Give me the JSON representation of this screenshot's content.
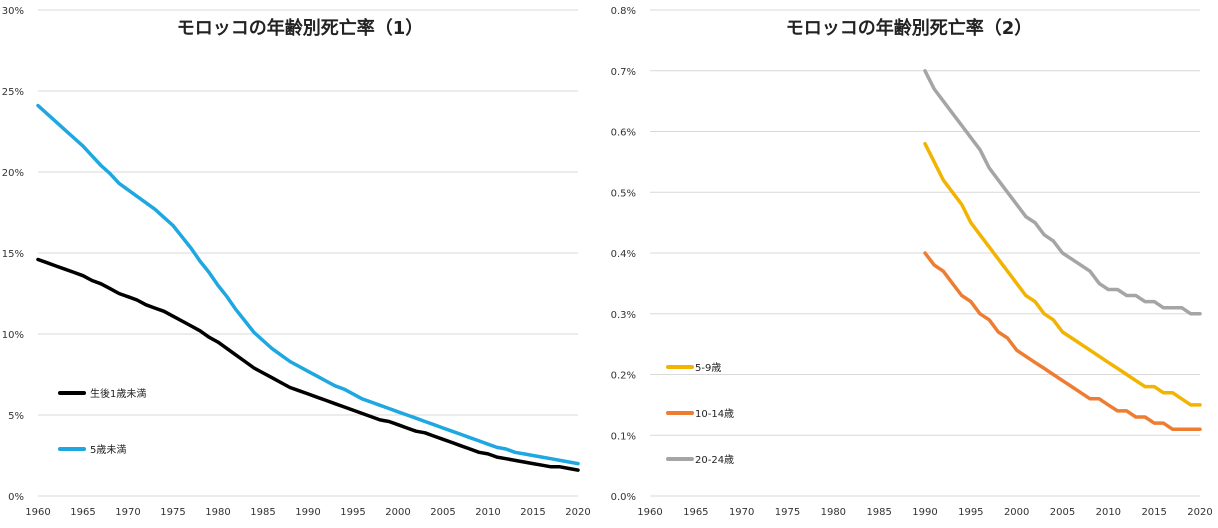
{
  "chart_data": [
    {
      "type": "line",
      "title": "モロッコの年齢別死亡率（1）",
      "xlabel": "",
      "ylabel": "",
      "xlim": [
        1960,
        2020
      ],
      "ylim": [
        0,
        30
      ],
      "x_ticks": [
        1960,
        1965,
        1970,
        1975,
        1980,
        1985,
        1990,
        1995,
        2000,
        2005,
        2010,
        2015,
        2020
      ],
      "x_tick_labels": [
        "1960",
        "1965",
        "1970",
        "1975",
        "1980",
        "1985",
        "1990",
        "1995",
        "2000",
        "2005",
        "2010",
        "2015",
        "2020"
      ],
      "y_ticks": [
        0,
        5,
        10,
        15,
        20,
        25,
        30
      ],
      "y_tick_labels": [
        "0%",
        "5%",
        "10%",
        "15%",
        "20%",
        "25%",
        "30%"
      ],
      "grid": true,
      "legend_position": "bottom-left",
      "series": [
        {
          "name": "生後1歳未満",
          "color": "#000000",
          "x": [
            1960,
            1961,
            1962,
            1963,
            1964,
            1965,
            1966,
            1967,
            1968,
            1969,
            1970,
            1971,
            1972,
            1973,
            1974,
            1975,
            1976,
            1977,
            1978,
            1979,
            1980,
            1981,
            1982,
            1983,
            1984,
            1985,
            1986,
            1987,
            1988,
            1989,
            1990,
            1991,
            1992,
            1993,
            1994,
            1995,
            1996,
            1997,
            1998,
            1999,
            2000,
            2001,
            2002,
            2003,
            2004,
            2005,
            2006,
            2007,
            2008,
            2009,
            2010,
            2011,
            2012,
            2013,
            2014,
            2015,
            2016,
            2017,
            2018,
            2019,
            2020
          ],
          "values": [
            14.6,
            14.4,
            14.2,
            14.0,
            13.8,
            13.6,
            13.3,
            13.1,
            12.8,
            12.5,
            12.3,
            12.1,
            11.8,
            11.6,
            11.4,
            11.1,
            10.8,
            10.5,
            10.2,
            9.8,
            9.5,
            9.1,
            8.7,
            8.3,
            7.9,
            7.6,
            7.3,
            7.0,
            6.7,
            6.5,
            6.3,
            6.1,
            5.9,
            5.7,
            5.5,
            5.3,
            5.1,
            4.9,
            4.7,
            4.6,
            4.4,
            4.2,
            4.0,
            3.9,
            3.7,
            3.5,
            3.3,
            3.1,
            2.9,
            2.7,
            2.6,
            2.4,
            2.3,
            2.2,
            2.1,
            2.0,
            1.9,
            1.8,
            1.8,
            1.7,
            1.6
          ]
        },
        {
          "name": "5歳未満",
          "color": "#1ea7e0",
          "x": [
            1960,
            1961,
            1962,
            1963,
            1964,
            1965,
            1966,
            1967,
            1968,
            1969,
            1970,
            1971,
            1972,
            1973,
            1974,
            1975,
            1976,
            1977,
            1978,
            1979,
            1980,
            1981,
            1982,
            1983,
            1984,
            1985,
            1986,
            1987,
            1988,
            1989,
            1990,
            1991,
            1992,
            1993,
            1994,
            1995,
            1996,
            1997,
            1998,
            1999,
            2000,
            2001,
            2002,
            2003,
            2004,
            2005,
            2006,
            2007,
            2008,
            2009,
            2010,
            2011,
            2012,
            2013,
            2014,
            2015,
            2016,
            2017,
            2018,
            2019,
            2020
          ],
          "values": [
            24.1,
            23.6,
            23.1,
            22.6,
            22.1,
            21.6,
            21.0,
            20.4,
            19.9,
            19.3,
            18.9,
            18.5,
            18.1,
            17.7,
            17.2,
            16.7,
            16.0,
            15.3,
            14.5,
            13.8,
            13.0,
            12.3,
            11.5,
            10.8,
            10.1,
            9.6,
            9.1,
            8.7,
            8.3,
            8.0,
            7.7,
            7.4,
            7.1,
            6.8,
            6.6,
            6.3,
            6.0,
            5.8,
            5.6,
            5.4,
            5.2,
            5.0,
            4.8,
            4.6,
            4.4,
            4.2,
            4.0,
            3.8,
            3.6,
            3.4,
            3.2,
            3.0,
            2.9,
            2.7,
            2.6,
            2.5,
            2.4,
            2.3,
            2.2,
            2.1,
            2.0
          ]
        }
      ]
    },
    {
      "type": "line",
      "title": "モロッコの年齢別死亡率（2）",
      "xlabel": "",
      "ylabel": "",
      "xlim": [
        1960,
        2020
      ],
      "ylim": [
        0,
        0.8
      ],
      "x_ticks": [
        1960,
        1965,
        1970,
        1975,
        1980,
        1985,
        1990,
        1995,
        2000,
        2005,
        2010,
        2015,
        2020
      ],
      "x_tick_labels": [
        "1960",
        "1965",
        "1970",
        "1975",
        "1980",
        "1985",
        "1990",
        "1995",
        "2000",
        "2005",
        "2010",
        "2015",
        "2020"
      ],
      "y_ticks": [
        0,
        0.1,
        0.2,
        0.3,
        0.4,
        0.5,
        0.6,
        0.7,
        0.8
      ],
      "y_tick_labels": [
        "0.0%",
        "0.1%",
        "0.2%",
        "0.3%",
        "0.4%",
        "0.5%",
        "0.6%",
        "0.7%",
        "0.8%"
      ],
      "grid": true,
      "legend_position": "bottom-left",
      "series": [
        {
          "name": "5-9歳",
          "color": "#f2b400",
          "x": [
            1990,
            1991,
            1992,
            1993,
            1994,
            1995,
            1996,
            1997,
            1998,
            1999,
            2000,
            2001,
            2002,
            2003,
            2004,
            2005,
            2006,
            2007,
            2008,
            2009,
            2010,
            2011,
            2012,
            2013,
            2014,
            2015,
            2016,
            2017,
            2018,
            2019,
            2020
          ],
          "values": [
            0.58,
            0.55,
            0.52,
            0.5,
            0.48,
            0.45,
            0.43,
            0.41,
            0.39,
            0.37,
            0.35,
            0.33,
            0.32,
            0.3,
            0.29,
            0.27,
            0.26,
            0.25,
            0.24,
            0.23,
            0.22,
            0.21,
            0.2,
            0.19,
            0.18,
            0.18,
            0.17,
            0.17,
            0.16,
            0.15,
            0.15
          ]
        },
        {
          "name": "10-14歳",
          "color": "#ee7d31",
          "x": [
            1990,
            1991,
            1992,
            1993,
            1994,
            1995,
            1996,
            1997,
            1998,
            1999,
            2000,
            2001,
            2002,
            2003,
            2004,
            2005,
            2006,
            2007,
            2008,
            2009,
            2010,
            2011,
            2012,
            2013,
            2014,
            2015,
            2016,
            2017,
            2018,
            2019,
            2020
          ],
          "values": [
            0.4,
            0.38,
            0.37,
            0.35,
            0.33,
            0.32,
            0.3,
            0.29,
            0.27,
            0.26,
            0.24,
            0.23,
            0.22,
            0.21,
            0.2,
            0.19,
            0.18,
            0.17,
            0.16,
            0.16,
            0.15,
            0.14,
            0.14,
            0.13,
            0.13,
            0.12,
            0.12,
            0.11,
            0.11,
            0.11,
            0.11
          ]
        },
        {
          "name": "20-24歳",
          "color": "#a5a5a5",
          "x": [
            1990,
            1991,
            1992,
            1993,
            1994,
            1995,
            1996,
            1997,
            1998,
            1999,
            2000,
            2001,
            2002,
            2003,
            2004,
            2005,
            2006,
            2007,
            2008,
            2009,
            2010,
            2011,
            2012,
            2013,
            2014,
            2015,
            2016,
            2017,
            2018,
            2019,
            2020
          ],
          "values": [
            0.7,
            0.67,
            0.65,
            0.63,
            0.61,
            0.59,
            0.57,
            0.54,
            0.52,
            0.5,
            0.48,
            0.46,
            0.45,
            0.43,
            0.42,
            0.4,
            0.39,
            0.38,
            0.37,
            0.35,
            0.34,
            0.34,
            0.33,
            0.33,
            0.32,
            0.32,
            0.31,
            0.31,
            0.31,
            0.3,
            0.3
          ]
        }
      ]
    }
  ]
}
